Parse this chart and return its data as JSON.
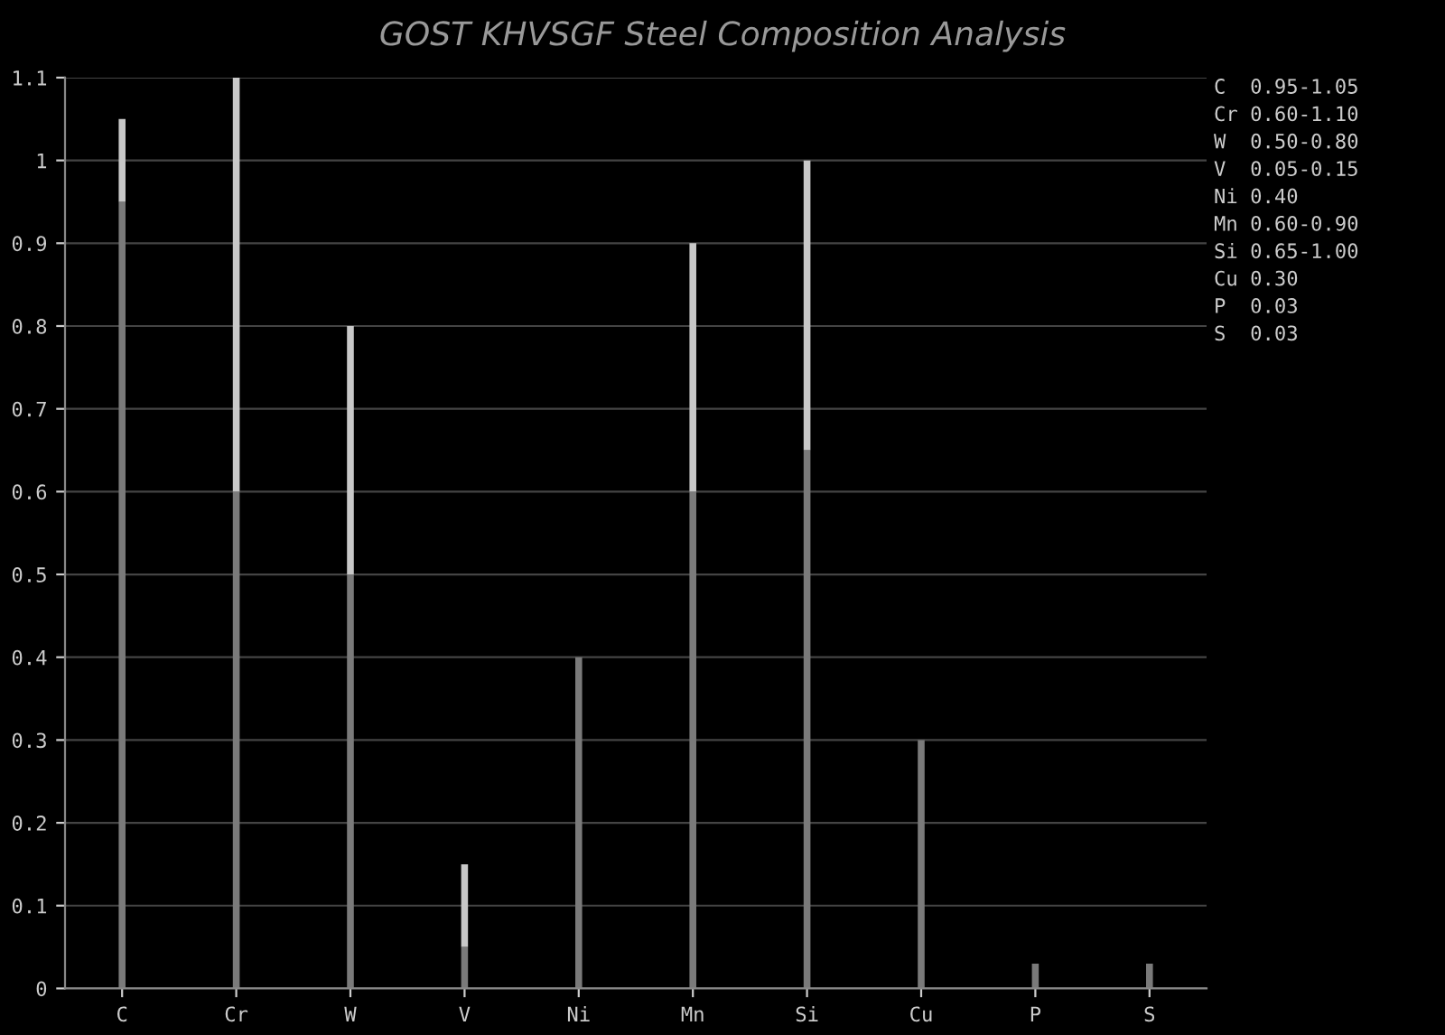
{
  "chart_data": {
    "type": "bar",
    "stacked": true,
    "title": "GOST KHVSGF Steel Composition Analysis",
    "categories": [
      "C",
      "Cr",
      "W",
      "V",
      "Ni",
      "Mn",
      "Si",
      "Cu",
      "P",
      "S"
    ],
    "series": [
      {
        "color": "#7a7a7a",
        "values": [
          0.95,
          0.6,
          0.5,
          0.05,
          0.4,
          0.6,
          0.65,
          0.3,
          0.03,
          0.03
        ]
      },
      {
        "color": "#c8c8c8",
        "values": [
          0.1,
          0.5,
          0.3,
          0.1,
          0,
          0.3,
          0.35,
          0,
          0,
          0
        ]
      }
    ],
    "ylim": [
      0,
      1.1
    ],
    "yticks": [
      0,
      0.1,
      0.2,
      0.3,
      0.4,
      0.5,
      0.6,
      0.7,
      0.8,
      0.9,
      1,
      1.1
    ],
    "grid": "y",
    "legend": false,
    "annotations": [
      "C  0.95-1.05",
      "Cr 0.60-1.10",
      "W  0.50-0.80",
      "V  0.05-0.15",
      "Ni 0.40",
      "Mn 0.60-0.90",
      "Si 0.65-1.00",
      "Cu 0.30",
      "P  0.03",
      "S  0.03"
    ]
  }
}
